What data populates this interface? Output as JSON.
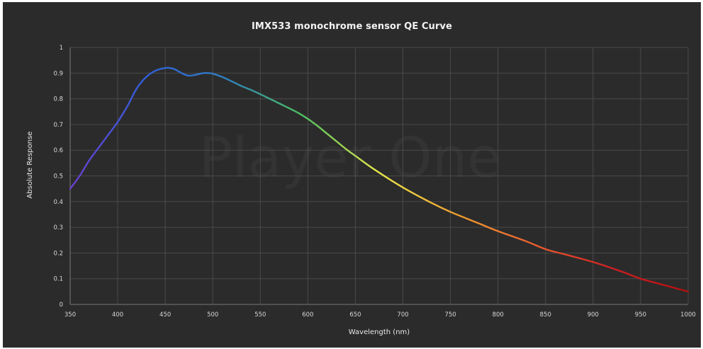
{
  "chart_data": {
    "type": "line",
    "title": "IMX533 monochrome sensor QE Curve",
    "xlabel": "Wavelength (nm)",
    "ylabel": "Absolute Response",
    "watermark": "Player One",
    "xlim": [
      350,
      1000
    ],
    "ylim": [
      0,
      1
    ],
    "x_ticks": [
      "350",
      "400",
      "450",
      "500",
      "550",
      "600",
      "650",
      "700",
      "750",
      "800",
      "850",
      "900",
      "950",
      "1000"
    ],
    "y_ticks": [
      "0",
      "0.1",
      "0.2",
      "0.3",
      "0.4",
      "0.5",
      "0.6",
      "0.7",
      "0.8",
      "0.9",
      "1"
    ],
    "grid": true,
    "background_color": "#2b2b2b",
    "line_gradient": [
      "#6a3fd0",
      "#3060d8",
      "#2f80c0",
      "#4cc060",
      "#e8e84a",
      "#f0a030",
      "#e86030",
      "#d02020",
      "#b01010"
    ],
    "series": [
      {
        "x": [
          350,
          360,
          370,
          380,
          390,
          400,
          410,
          420,
          430,
          440,
          450,
          455,
          460,
          470,
          475,
          480,
          490,
          495,
          500,
          510,
          520,
          530,
          540,
          550,
          560,
          570,
          580,
          590,
          600,
          610,
          620,
          630,
          640,
          650,
          670,
          700,
          730,
          750,
          780,
          800,
          830,
          850,
          870,
          900,
          930,
          950,
          970,
          1000
        ],
        "y": [
          0.45,
          0.5,
          0.56,
          0.61,
          0.66,
          0.71,
          0.77,
          0.84,
          0.885,
          0.91,
          0.92,
          0.92,
          0.915,
          0.895,
          0.89,
          0.892,
          0.9,
          0.9,
          0.898,
          0.885,
          0.868,
          0.85,
          0.835,
          0.818,
          0.8,
          0.782,
          0.764,
          0.745,
          0.722,
          0.695,
          0.665,
          0.635,
          0.605,
          0.578,
          0.525,
          0.455,
          0.395,
          0.36,
          0.315,
          0.285,
          0.245,
          0.215,
          0.195,
          0.165,
          0.128,
          0.1,
          0.08,
          0.05
        ]
      }
    ]
  }
}
